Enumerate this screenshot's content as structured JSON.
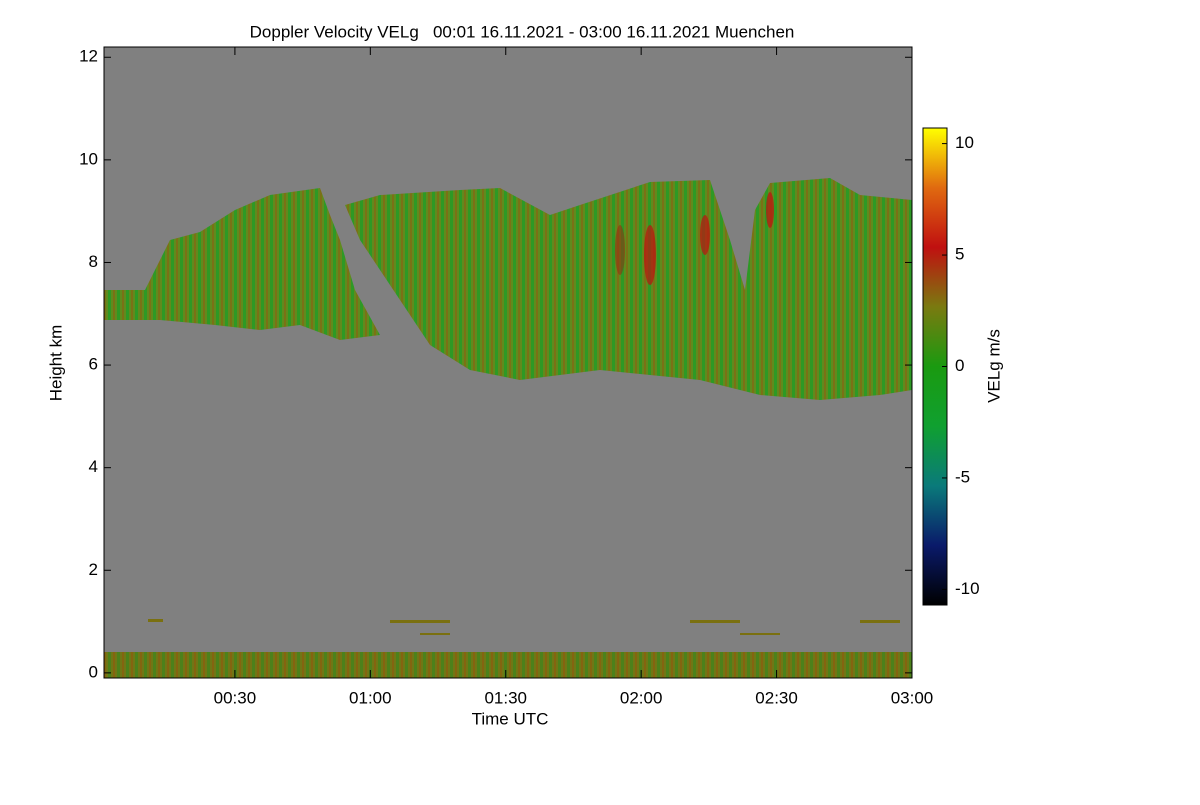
{
  "chart_data": {
    "type": "heatmap",
    "title": "Doppler Velocity VELg   00:01 16.11.2021 - 03:00 16.11.2021 Muenchen",
    "x_label": "Time UTC",
    "y_label": "Height km",
    "xlim": [
      1,
      180
    ],
    "xticks": [
      {
        "value": 30,
        "label": "00:30"
      },
      {
        "value": 60,
        "label": "01:00"
      },
      {
        "value": 90,
        "label": "01:30"
      },
      {
        "value": 120,
        "label": "02:00"
      },
      {
        "value": 150,
        "label": "02:30"
      },
      {
        "value": 180,
        "label": "03:00"
      }
    ],
    "ylim": [
      -0.1,
      12.2
    ],
    "yticks": [
      0,
      2,
      4,
      6,
      8,
      10,
      12
    ],
    "background": "#808080",
    "colorbar": {
      "label": "VELg m/s",
      "lim": [
        -10.7,
        10.7
      ],
      "ticks": [
        10,
        5,
        0,
        -5,
        -10
      ],
      "colors": [
        "#000000",
        "#0a1a6a",
        "#0a7a7a",
        "#10a030",
        "#1a9a10",
        "#7a7a10",
        "#c01010",
        "#e06a10",
        "#ffff00"
      ]
    }
  }
}
